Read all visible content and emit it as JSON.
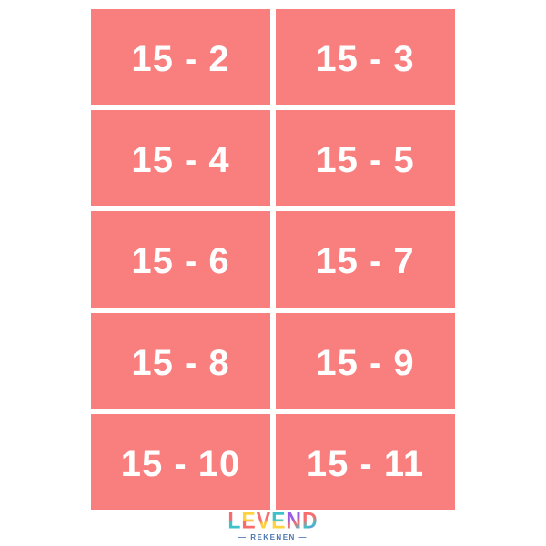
{
  "cards": [
    "15 - 2",
    "15 - 3",
    "15 - 4",
    "15 - 5",
    "15 - 6",
    "15 - 7",
    "15 - 8",
    "15 - 9",
    "15 - 10",
    "15 - 11"
  ],
  "logo": {
    "letters": [
      "L",
      "E",
      "V",
      "E",
      "N",
      "D"
    ],
    "subtitle": "— REKENEN —"
  },
  "colors": {
    "card": "#F97E7E",
    "card-text": "#FFFFFF",
    "logo-red": "#F76C6C",
    "logo-teal": "#3FC1C9",
    "logo-yellow": "#FFD23F",
    "logo-purple": "#9B5DE5",
    "logo-blue": "#4A77B0"
  }
}
